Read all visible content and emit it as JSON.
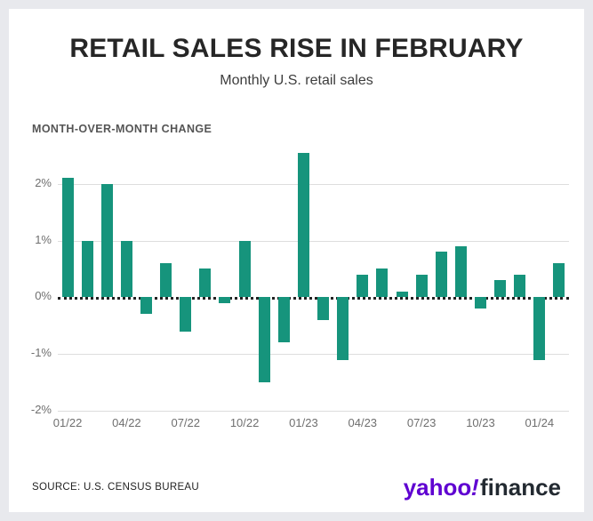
{
  "header": {
    "title": "RETAIL SALES RISE IN FEBRUARY",
    "subtitle": "Monthly U.S. retail sales"
  },
  "chart_data": {
    "type": "bar",
    "title": "MONTH-OVER-MONTH CHANGE",
    "categories": [
      "01/22",
      "02/22",
      "03/22",
      "04/22",
      "05/22",
      "06/22",
      "07/22",
      "08/22",
      "09/22",
      "10/22",
      "11/22",
      "12/22",
      "01/23",
      "02/23",
      "03/23",
      "04/23",
      "05/23",
      "06/23",
      "07/23",
      "08/23",
      "09/23",
      "10/23",
      "11/23",
      "12/23",
      "01/24",
      "02/24"
    ],
    "values": [
      2.1,
      1.0,
      2.0,
      1.0,
      -0.3,
      0.6,
      -0.6,
      0.5,
      -0.1,
      1.0,
      -1.5,
      -0.8,
      2.55,
      -0.4,
      -1.1,
      0.4,
      0.5,
      0.1,
      0.4,
      0.8,
      0.9,
      -0.2,
      0.3,
      0.4,
      -1.1,
      0.6
    ],
    "yticks": [
      {
        "value": 2,
        "label": "2%"
      },
      {
        "value": 1,
        "label": "1%"
      },
      {
        "value": 0,
        "label": "0%"
      },
      {
        "value": -1,
        "label": "-1%"
      },
      {
        "value": -2,
        "label": "-2%"
      }
    ],
    "xticks": [
      {
        "index": 0,
        "label": "01/22"
      },
      {
        "index": 3,
        "label": "04/22"
      },
      {
        "index": 6,
        "label": "07/22"
      },
      {
        "index": 9,
        "label": "10/22"
      },
      {
        "index": 12,
        "label": "01/23"
      },
      {
        "index": 15,
        "label": "04/23"
      },
      {
        "index": 18,
        "label": "07/23"
      },
      {
        "index": 21,
        "label": "10/23"
      },
      {
        "index": 24,
        "label": "01/24"
      }
    ],
    "ylim": [
      -2.0,
      2.7
    ],
    "grid": true,
    "zero_line_style": "dotted",
    "legend": "none",
    "bar_color": "#16947c"
  },
  "footer": {
    "source": "SOURCE: U.S. CENSUS BUREAU",
    "brand": {
      "yahoo": "yahoo",
      "bang": "!",
      "finance": "finance"
    }
  },
  "colors": {
    "bar": "#16947c",
    "background": "#e8e9ed",
    "card": "#ffffff",
    "accent_purple": "#5f01d1",
    "grid": "#dddddd",
    "zero_line": "#222222"
  }
}
